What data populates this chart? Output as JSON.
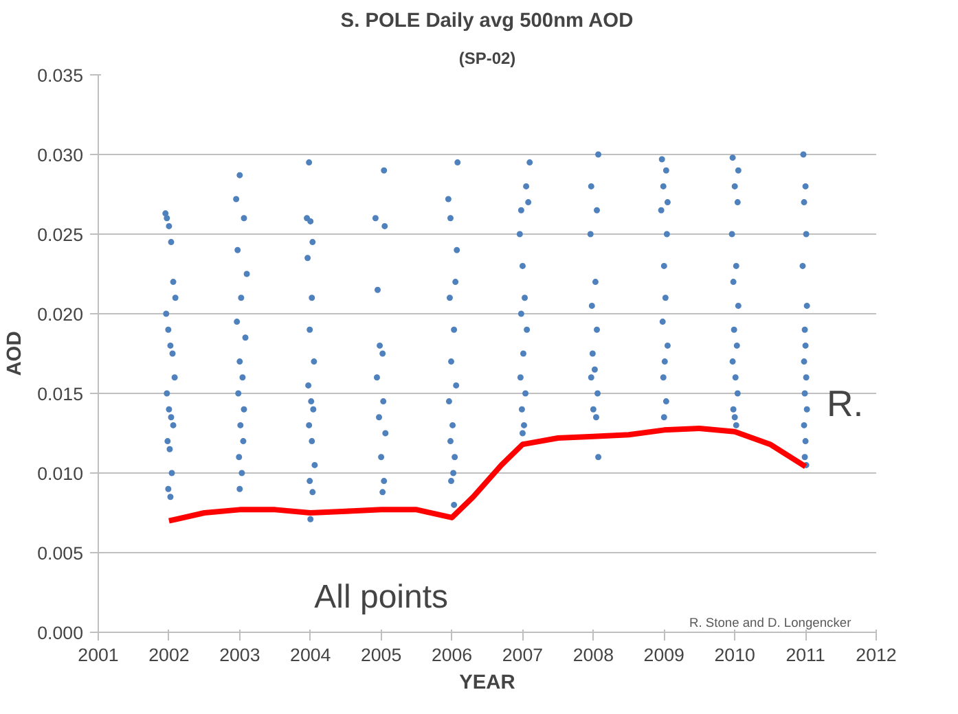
{
  "chart_data": {
    "type": "scatter",
    "title": "S. POLE Daily avg 500nm AOD",
    "subtitle": "(SP-02)",
    "xlabel": "YEAR",
    "ylabel": "AOD",
    "xlim": [
      2001,
      2012
    ],
    "xticks": [
      2001,
      2002,
      2003,
      2004,
      2005,
      2006,
      2007,
      2008,
      2009,
      2010,
      2011,
      2012
    ],
    "ylim": [
      0,
      0.035
    ],
    "yticks": [
      {
        "value": 0,
        "label": "0.000"
      },
      {
        "value": 0.005,
        "label": "0.005"
      },
      {
        "value": 0.01,
        "label": "0.010"
      },
      {
        "value": 0.015,
        "label": "0.015"
      },
      {
        "value": 0.02,
        "label": "0.020"
      },
      {
        "value": 0.025,
        "label": "0.025"
      },
      {
        "value": 0.03,
        "label": "0.030"
      },
      {
        "value": 0.035,
        "label": "0.035"
      }
    ],
    "grid": "y",
    "marker": "circle",
    "series": [
      {
        "color": "#4f81bd",
        "x": [
          2001.95,
          2001.97,
          2002.0,
          2002.03,
          2002.06,
          2002.09,
          2001.96,
          2001.99,
          2002.02,
          2002.05,
          2002.08,
          2001.97,
          2002.0,
          2002.03,
          2002.06,
          2001.98,
          2002.01,
          2002.04,
          2001.99,
          2002.02
        ],
        "values": [
          0.0263,
          0.026,
          0.0255,
          0.0245,
          0.022,
          0.021,
          0.02,
          0.019,
          0.018,
          0.0175,
          0.016,
          0.015,
          0.014,
          0.0135,
          0.013,
          0.012,
          0.0115,
          0.01,
          0.009,
          0.0085
        ]
      },
      {
        "color": "#4f81bd",
        "x": [
          2003.0,
          2002.95,
          2003.06,
          2002.97,
          2003.1,
          2003.02,
          2002.96,
          2003.08,
          2003.0,
          2003.04,
          2002.98,
          2003.06,
          2003.01,
          2003.05,
          2002.99,
          2003.03,
          2003.0
        ],
        "values": [
          0.0287,
          0.0272,
          0.026,
          0.024,
          0.0225,
          0.021,
          0.0195,
          0.0185,
          0.017,
          0.016,
          0.015,
          0.014,
          0.013,
          0.012,
          0.011,
          0.01,
          0.009
        ]
      },
      {
        "color": "#4f81bd",
        "x": [
          2003.98,
          2003.95,
          2004.0,
          2004.03,
          2003.96,
          2004.02,
          2003.99,
          2004.05,
          2003.97,
          2004.01,
          2004.04,
          2003.98,
          2004.02,
          2004.06,
          2003.99,
          2004.03,
          2004.0
        ],
        "values": [
          0.0295,
          0.026,
          0.0258,
          0.0245,
          0.0235,
          0.021,
          0.019,
          0.017,
          0.0155,
          0.0145,
          0.014,
          0.013,
          0.012,
          0.0105,
          0.0095,
          0.0088,
          0.0071
        ]
      },
      {
        "color": "#4f81bd",
        "x": [
          2005.04,
          2004.92,
          2005.05,
          2004.95,
          2004.98,
          2005.02,
          2004.94,
          2005.03,
          2004.97,
          2005.06,
          2005.0,
          2005.04,
          2005.02
        ],
        "values": [
          0.029,
          0.026,
          0.0255,
          0.0215,
          0.018,
          0.0175,
          0.016,
          0.0145,
          0.0135,
          0.0125,
          0.011,
          0.0095,
          0.0088
        ]
      },
      {
        "color": "#4f81bd",
        "x": [
          2006.08,
          2005.95,
          2005.98,
          2006.07,
          2006.05,
          2005.97,
          2006.03,
          2005.99,
          2006.06,
          2005.96,
          2006.01,
          2005.98,
          2006.04,
          2006.02,
          2005.99,
          2006.03
        ],
        "values": [
          0.0295,
          0.0272,
          0.026,
          0.024,
          0.022,
          0.021,
          0.019,
          0.017,
          0.0155,
          0.0145,
          0.013,
          0.012,
          0.011,
          0.01,
          0.0095,
          0.008
        ]
      },
      {
        "color": "#4f81bd",
        "x": [
          2007.1,
          2007.05,
          2007.08,
          2006.98,
          2006.96,
          2007.0,
          2007.03,
          2006.98,
          2007.06,
          2007.01,
          2006.97,
          2007.04,
          2006.99,
          2007.02,
          2007.0
        ],
        "values": [
          0.0295,
          0.028,
          0.027,
          0.0265,
          0.025,
          0.023,
          0.021,
          0.02,
          0.019,
          0.0175,
          0.016,
          0.015,
          0.014,
          0.013,
          0.0125
        ]
      },
      {
        "color": "#4f81bd",
        "x": [
          2008.07,
          2007.97,
          2008.05,
          2007.96,
          2008.03,
          2007.98,
          2008.05,
          2007.99,
          2008.02,
          2007.97,
          2008.06,
          2008.0,
          2008.04,
          2008.07
        ],
        "values": [
          0.03,
          0.028,
          0.0265,
          0.025,
          0.022,
          0.0205,
          0.019,
          0.0175,
          0.0165,
          0.016,
          0.015,
          0.014,
          0.0135,
          0.011
        ]
      },
      {
        "color": "#4f81bd",
        "x": [
          2008.97,
          2009.03,
          2008.99,
          2009.05,
          2008.96,
          2009.04,
          2009.0,
          2009.02,
          2008.98,
          2009.05,
          2009.01,
          2008.99,
          2009.03,
          2009.0
        ],
        "values": [
          0.0297,
          0.029,
          0.028,
          0.027,
          0.0265,
          0.025,
          0.023,
          0.021,
          0.0195,
          0.018,
          0.017,
          0.016,
          0.0145,
          0.0135
        ]
      },
      {
        "color": "#4f81bd",
        "x": [
          2009.97,
          2010.05,
          2010.0,
          2010.04,
          2009.96,
          2010.02,
          2009.98,
          2010.05,
          2009.99,
          2010.03,
          2009.97,
          2010.01,
          2010.04,
          2009.98,
          2010.02,
          2010.0
        ],
        "values": [
          0.0298,
          0.029,
          0.028,
          0.027,
          0.025,
          0.023,
          0.022,
          0.0205,
          0.019,
          0.018,
          0.017,
          0.016,
          0.015,
          0.014,
          0.013,
          0.0135
        ]
      },
      {
        "color": "#4f81bd",
        "x": [
          2010.97,
          2011.0,
          2010.98,
          2011.01,
          2010.96,
          2011.02,
          2010.99,
          2011.0,
          2010.98,
          2011.01,
          2010.99,
          2011.02,
          2010.98,
          2011.0,
          2010.99,
          2011.01
        ],
        "values": [
          0.03,
          0.028,
          0.027,
          0.025,
          0.023,
          0.0205,
          0.019,
          0.018,
          0.017,
          0.016,
          0.015,
          0.014,
          0.013,
          0.012,
          0.011,
          0.0105
        ]
      },
      {
        "type": "line",
        "color": "#ff0000",
        "line_style": "solid",
        "marker": "none",
        "x": [
          2002,
          2002.5,
          2003,
          2003.5,
          2004,
          2004.5,
          2005,
          2005.5,
          2006,
          2006.3,
          2006.7,
          2007,
          2007.5,
          2008,
          2008.5,
          2009,
          2009.5,
          2010,
          2010.5,
          2011
        ],
        "values": [
          0.007,
          0.0075,
          0.0077,
          0.0077,
          0.0075,
          0.0076,
          0.0077,
          0.0077,
          0.0072,
          0.0085,
          0.0105,
          0.0118,
          0.0122,
          0.0123,
          0.0124,
          0.0127,
          0.0128,
          0.0126,
          0.0118,
          0.0104
        ]
      }
    ],
    "annotations": [
      "All points",
      "R. Stone and D. Longencker",
      "R."
    ]
  }
}
